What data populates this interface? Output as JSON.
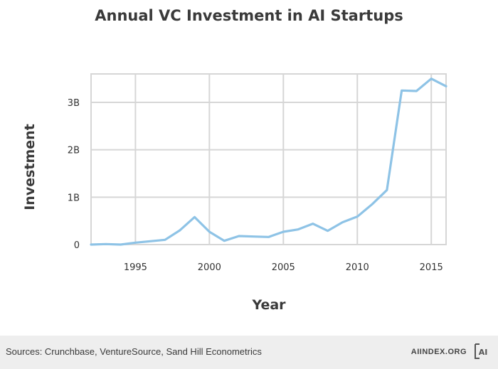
{
  "chart_data": {
    "type": "line",
    "title": "Annual VC Investment in AI Startups",
    "xlabel": "Year",
    "ylabel": "Investment",
    "xlim": [
      1992,
      2016
    ],
    "ylim": [
      0,
      3.6
    ],
    "xticks": [
      1995,
      2000,
      2005,
      2010,
      2015
    ],
    "yticks": [
      {
        "value": 0,
        "label": "0"
      },
      {
        "value": 1,
        "label": "1B"
      },
      {
        "value": 2,
        "label": "2B"
      },
      {
        "value": 3,
        "label": "3B"
      }
    ],
    "grid": true,
    "line_color": "#8ec3e6",
    "series": [
      {
        "x": [
          1992,
          1993,
          1994,
          1995,
          1996,
          1997,
          1998,
          1999,
          2000,
          2001,
          2002,
          2003,
          2004,
          2005,
          2006,
          2007,
          2008,
          2009,
          2010,
          2011,
          2012,
          2013,
          2014,
          2015,
          2016
        ],
        "values": [
          0.0,
          0.01,
          0.0,
          0.04,
          0.07,
          0.1,
          0.3,
          0.58,
          0.27,
          0.08,
          0.18,
          0.17,
          0.16,
          0.27,
          0.32,
          0.44,
          0.29,
          0.47,
          0.59,
          0.85,
          1.15,
          3.25,
          3.24,
          3.5,
          3.34
        ]
      }
    ]
  },
  "footer": {
    "source": "Sources: Crunchbase, VentureSource, Sand Hill Econometrics",
    "brand": "AIINDEX.ORG",
    "logo_text": "AI"
  }
}
